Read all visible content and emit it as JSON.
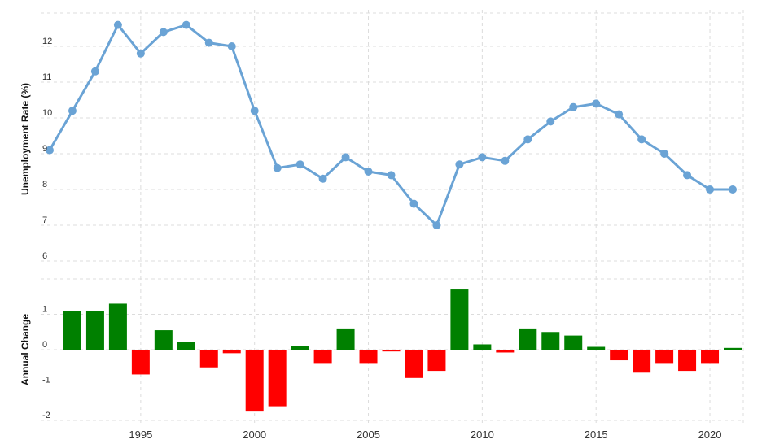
{
  "chart_data": [
    {
      "type": "line",
      "ylabel": "Unemployment Rate (%)",
      "ylim": [
        6,
        12.7
      ],
      "yticks": [
        "6",
        "7",
        "8",
        "9",
        "10",
        "11",
        "12"
      ],
      "grid": true,
      "line_color": "#6aa3d5",
      "x": [
        1991,
        1992,
        1993,
        1994,
        1995,
        1996,
        1997,
        1998,
        1999,
        2000,
        2001,
        2002,
        2003,
        2004,
        2005,
        2006,
        2007,
        2008,
        2009,
        2010,
        2011,
        2012,
        2013,
        2014,
        2015,
        2016,
        2017,
        2018,
        2019,
        2020,
        2021
      ],
      "series": [
        {
          "values": [
            9.1,
            10.2,
            11.3,
            12.6,
            11.8,
            12.4,
            12.6,
            12.1,
            12.0,
            10.2,
            8.6,
            8.7,
            8.3,
            8.9,
            8.5,
            8.4,
            7.6,
            7.0,
            8.7,
            8.9,
            8.8,
            9.4,
            9.9,
            10.3,
            10.4,
            10.1,
            9.4,
            9.0,
            8.4,
            8.0,
            8.0
          ]
        }
      ]
    },
    {
      "type": "bar",
      "ylabel": "Annual Change",
      "ylim": [
        -2.1,
        2.0
      ],
      "yticks": [
        "-2",
        "-1",
        "0",
        "1"
      ],
      "grid": true,
      "positive_color": "#008000",
      "negative_color": "#ff0000",
      "xlim": [
        1991,
        2021
      ],
      "xticks": [
        "1995",
        "2000",
        "2005",
        "2010",
        "2015",
        "2020"
      ],
      "x": [
        1992,
        1993,
        1994,
        1995,
        1996,
        1997,
        1998,
        1999,
        2000,
        2001,
        2002,
        2003,
        2004,
        2005,
        2006,
        2007,
        2008,
        2009,
        2010,
        2011,
        2012,
        2013,
        2014,
        2015,
        2016,
        2017,
        2018,
        2019,
        2020,
        2021
      ],
      "series": [
        {
          "values": [
            1.1,
            1.1,
            1.3,
            -0.7,
            0.55,
            0.22,
            -0.5,
            -0.1,
            -1.75,
            -1.6,
            0.1,
            -0.4,
            0.6,
            -0.4,
            -0.05,
            -0.8,
            -0.6,
            1.7,
            0.15,
            -0.08,
            0.6,
            0.5,
            0.4,
            0.08,
            -0.3,
            -0.65,
            -0.4,
            -0.6,
            -0.4,
            0.05
          ]
        }
      ]
    }
  ]
}
